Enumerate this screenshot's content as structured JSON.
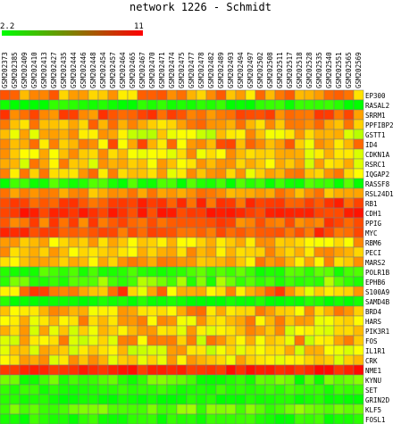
{
  "chart_data": {
    "type": "heatmap",
    "title": "network 1226 - Schmidt",
    "color_scale": {
      "min": 2.2,
      "max": 11,
      "min_label": "2.2",
      "max_label": "11",
      "low_color": "#00ff00",
      "high_color": "#ff0000"
    },
    "columns": [
      "GSM202373",
      "GSM202385",
      "GSM202409",
      "GSM202410",
      "GSM202413",
      "GSM202427",
      "GSM202435",
      "GSM202444",
      "GSM202446",
      "GSM202448",
      "GSM202454",
      "GSM202457",
      "GSM202464",
      "GSM202465",
      "GSM202467",
      "GSM202470",
      "GSM202471",
      "GSM202474",
      "GSM202475",
      "GSM202477",
      "GSM202478",
      "GSM202482",
      "GSM202489",
      "GSM202493",
      "GSM202494",
      "GSM202497",
      "GSM202502",
      "GSM202508",
      "GSM202511",
      "GSM202517",
      "GSM202518",
      "GSM202528",
      "GSM202535",
      "GSM202540",
      "GSM202551",
      "GSM202565",
      "GSM202569"
    ],
    "rows": [
      "EP300",
      "RASAL2",
      "SRRM1",
      "PPFIBP2",
      "GSTT1",
      "ID4",
      "CDKN1A",
      "RSRC1",
      "IQGAP2",
      "RASSF8",
      "RSL24D1",
      "RB1",
      "CDH1",
      "PPIG",
      "MYC",
      "RBM6",
      "PECI",
      "MARS2",
      "POLR1B",
      "EPHB6",
      "S100A9",
      "SAMD4B",
      "BRD4",
      "HARS",
      "PIK3R1",
      "FOS",
      "IL1R1",
      "CRK",
      "NME1",
      "KYNU",
      "SET",
      "GRIN2D",
      "KLF5",
      "FOSL1"
    ],
    "row_base": [
      8.2,
      2.6,
      9.2,
      8.2,
      7.0,
      8.3,
      7.3,
      7.4,
      7.6,
      3.0,
      8.3,
      9.7,
      10.2,
      9.3,
      9.6,
      7.5,
      7.6,
      7.8,
      3.2,
      4.0,
      8.0,
      2.4,
      7.8,
      7.6,
      7.3,
      7.3,
      7.0,
      7.2,
      10.4,
      3.4,
      3.1,
      2.5,
      4.0,
      2.8
    ],
    "row_spread": [
      1.4,
      0.6,
      1.0,
      1.2,
      1.8,
      2.0,
      1.4,
      1.6,
      1.6,
      0.8,
      0.9,
      0.8,
      0.6,
      0.9,
      0.8,
      1.2,
      1.2,
      1.2,
      0.8,
      1.4,
      2.2,
      0.5,
      1.4,
      1.4,
      1.6,
      1.8,
      1.6,
      1.4,
      0.5,
      1.2,
      0.6,
      0.4,
      1.0,
      0.6
    ]
  }
}
